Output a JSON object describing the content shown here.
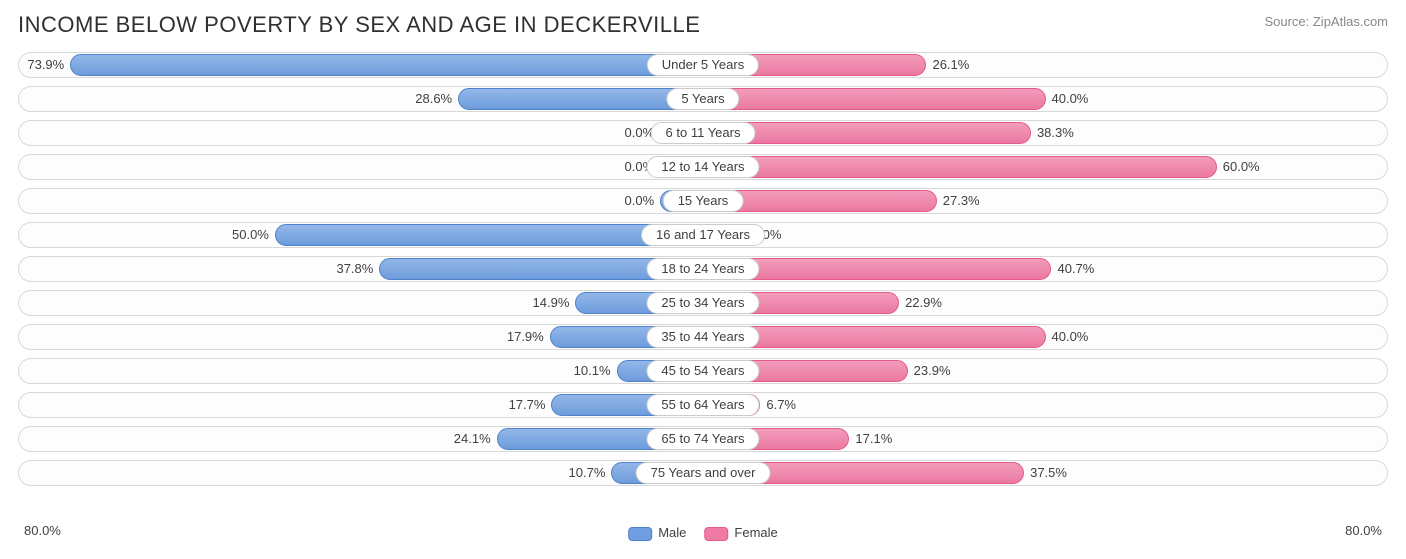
{
  "title": "INCOME BELOW POVERTY BY SEX AND AGE IN DECKERVILLE",
  "source": "Source: ZipAtlas.com",
  "chart": {
    "type": "diverging-bar",
    "axis_max": 80.0,
    "axis_label_left": "80.0%",
    "axis_label_right": "80.0%",
    "min_bar_pct": 5.0,
    "colors": {
      "male_fill": "#6f9fe0",
      "male_border": "#4f82c9",
      "female_fill": "#ef7ba4",
      "female_border": "#e45a8c",
      "track_border": "#d8d8d8",
      "track_bg": "#fdfdfd",
      "text": "#404040",
      "title_text": "#303030",
      "background": "#ffffff"
    },
    "rows": [
      {
        "category": "Under 5 Years",
        "male": 73.9,
        "female": 26.1,
        "male_label": "73.9%",
        "female_label": "26.1%"
      },
      {
        "category": "5 Years",
        "male": 28.6,
        "female": 40.0,
        "male_label": "28.6%",
        "female_label": "40.0%"
      },
      {
        "category": "6 to 11 Years",
        "male": 0.0,
        "female": 38.3,
        "male_label": "0.0%",
        "female_label": "38.3%"
      },
      {
        "category": "12 to 14 Years",
        "male": 0.0,
        "female": 60.0,
        "male_label": "0.0%",
        "female_label": "60.0%"
      },
      {
        "category": "15 Years",
        "male": 0.0,
        "female": 27.3,
        "male_label": "0.0%",
        "female_label": "27.3%"
      },
      {
        "category": "16 and 17 Years",
        "male": 50.0,
        "female": 0.0,
        "male_label": "50.0%",
        "female_label": "0.0%"
      },
      {
        "category": "18 to 24 Years",
        "male": 37.8,
        "female": 40.7,
        "male_label": "37.8%",
        "female_label": "40.7%"
      },
      {
        "category": "25 to 34 Years",
        "male": 14.9,
        "female": 22.9,
        "male_label": "14.9%",
        "female_label": "22.9%"
      },
      {
        "category": "35 to 44 Years",
        "male": 17.9,
        "female": 40.0,
        "male_label": "17.9%",
        "female_label": "40.0%"
      },
      {
        "category": "45 to 54 Years",
        "male": 10.1,
        "female": 23.9,
        "male_label": "10.1%",
        "female_label": "23.9%"
      },
      {
        "category": "55 to 64 Years",
        "male": 17.7,
        "female": 6.7,
        "male_label": "17.7%",
        "female_label": "6.7%"
      },
      {
        "category": "65 to 74 Years",
        "male": 24.1,
        "female": 17.1,
        "male_label": "24.1%",
        "female_label": "17.1%"
      },
      {
        "category": "75 Years and over",
        "male": 10.7,
        "female": 37.5,
        "male_label": "10.7%",
        "female_label": "37.5%"
      }
    ]
  },
  "legend": {
    "male": "Male",
    "female": "Female"
  }
}
